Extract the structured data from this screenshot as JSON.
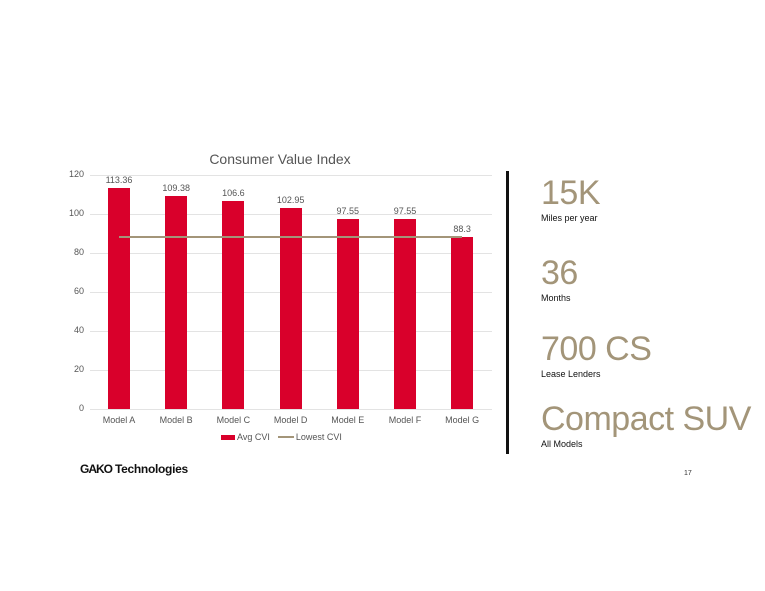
{
  "chart_data": {
    "type": "bar",
    "title": "Consumer Value Index",
    "categories": [
      "Model A",
      "Model B",
      "Model C",
      "Model D",
      "Model E",
      "Model F",
      "Model G"
    ],
    "series": [
      {
        "name": "Avg CVI",
        "kind": "bar",
        "color": "#D9002B",
        "values": [
          113.36,
          109.38,
          106.6,
          102.95,
          97.55,
          97.55,
          88.3
        ]
      },
      {
        "name": "Lowest CVI",
        "kind": "line",
        "color": "#A39579",
        "values": [
          88.3,
          88.3,
          88.3,
          88.3,
          88.3,
          88.3,
          88.3
        ]
      }
    ],
    "data_labels": [
      "113.36",
      "109.38",
      "106.6",
      "102.95",
      "97.55",
      "97.55",
      "88.3"
    ],
    "xlabel": "",
    "ylabel": "",
    "ylim": [
      0,
      120
    ],
    "yticks": [
      0,
      20,
      40,
      60,
      80,
      100,
      120
    ],
    "ytick_labels": [
      "0",
      "20",
      "40",
      "60",
      "80",
      "100",
      "120"
    ],
    "grid": true,
    "legend_position": "bottom"
  },
  "chart": {
    "title": "Consumer Value Index",
    "legend": {
      "bar_label": "Avg CVI",
      "line_label": "Lowest CVI"
    }
  },
  "stats": [
    {
      "value": "15K",
      "caption": "Miles per year"
    },
    {
      "value": "36",
      "caption": "Months"
    },
    {
      "value": "700 CS",
      "caption": "Lease Lenders"
    },
    {
      "value": "Compact SUV",
      "caption": "All Models"
    }
  ],
  "footer": {
    "logo_mark": "GAKO",
    "logo_text": "Technologies",
    "page_number": "17"
  },
  "colors": {
    "bar": "#D9002B",
    "accent": "#A39579",
    "divider": "#111111"
  }
}
